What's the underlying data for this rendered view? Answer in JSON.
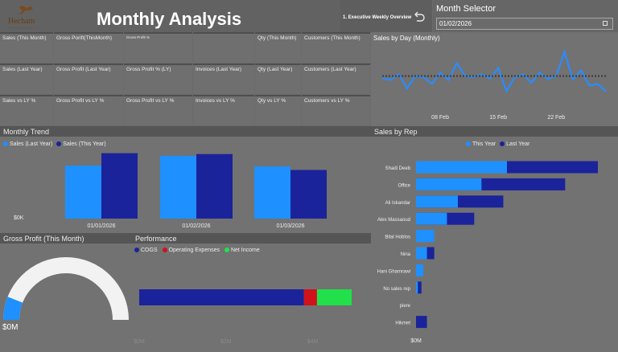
{
  "header": {
    "logo_text": "Hecham",
    "logo_sub": "—————————",
    "title": "Monthly Analysis",
    "nav_label": "1. Executive Weekly Overview",
    "back_icon": "back-arrow-icon"
  },
  "month_selector": {
    "label": "Month Selector",
    "value": "01/02/2026",
    "icon": "calendar-icon"
  },
  "kpi_rows": [
    [
      "Sales (This Month)",
      "Gross Porift(ThisMonth)",
      "Gross Profit %",
      "",
      "Qty (This Month)",
      "Customers (This Month)"
    ],
    [
      "Sales (Last Year)",
      "Gross Profit (Last Year)",
      "Gross Profit % (LY)",
      "Invoices (Last Year)",
      "Qty (Last Year)",
      "Customers (Last Year)"
    ],
    [
      "Sales vs LY %",
      "Gross Profit vs LY %",
      "Gross Profit vs LY %",
      "Invoices vs LY %",
      "Qty vs LY %",
      "Customers vs LY %"
    ]
  ],
  "sales_by_day": {
    "title": "Sales by Day (Monthly)",
    "ticks": [
      "08 Feb",
      "15 Feb",
      "22 Feb"
    ]
  },
  "monthly_trend": {
    "title": "Monthly Trend",
    "legend": [
      "Sales (Last Year)",
      "Sales (This Year)"
    ],
    "y_label": "$0K",
    "colors": {
      "last_year": "#1e90ff",
      "this_year": "#1a239a"
    }
  },
  "sales_by_rep": {
    "title": "Sales by Rep",
    "legend": [
      "This Year",
      "Last Year"
    ],
    "axis_label": "$0M"
  },
  "gross_profit": {
    "title": "Gross Profit (This Month)",
    "value": "$0M",
    "fill_fraction": 0.12
  },
  "performance": {
    "title": "Performance",
    "legend": [
      "COGS",
      "Operating Expenses",
      "Net Income"
    ],
    "colors": [
      "#1a239a",
      "#d0121b",
      "#22e04a"
    ],
    "ticks": [
      "$0M",
      "$2M",
      "$4M"
    ]
  },
  "chart_data": [
    {
      "type": "line",
      "title": "Sales by Day (Monthly)",
      "x": [
        "01 Feb",
        "02 Feb",
        "03 Feb",
        "04 Feb",
        "05 Feb",
        "06 Feb",
        "07 Feb",
        "08 Feb",
        "09 Feb",
        "10 Feb",
        "11 Feb",
        "12 Feb",
        "13 Feb",
        "14 Feb",
        "15 Feb",
        "16 Feb",
        "17 Feb",
        "18 Feb",
        "19 Feb",
        "20 Feb",
        "21 Feb",
        "22 Feb",
        "23 Feb",
        "24 Feb",
        "25 Feb",
        "26 Feb",
        "27 Feb",
        "28 Feb"
      ],
      "series": [
        {
          "values": [
            0.48,
            0.45,
            0.55,
            0.3,
            0.52,
            0.5,
            0.38,
            0.58,
            0.45,
            0.75,
            0.52,
            0.5,
            0.55,
            0.48,
            0.66,
            0.25,
            0.5,
            0.55,
            0.4,
            0.58,
            0.47,
            0.52,
            0.95,
            0.46,
            0.62,
            0.35,
            0.38,
            0.25
          ]
        },
        {
          "values": [
            0.52,
            0.52,
            0.52,
            0.52,
            0.52,
            0.52,
            0.52,
            0.52,
            0.52,
            0.52,
            0.52,
            0.52,
            0.52,
            0.52,
            0.52,
            0.52,
            0.52,
            0.52,
            0.52,
            0.52,
            0.52,
            0.52,
            0.52,
            0.52,
            0.52,
            0.52,
            0.52,
            0.52
          ]
        }
      ],
      "xticks": [
        "08 Feb",
        "15 Feb",
        "22 Feb"
      ]
    },
    {
      "type": "bar",
      "title": "Monthly Trend",
      "categories": [
        "01/01/2026",
        "01/02/2026",
        "01/03/2026"
      ],
      "series": [
        {
          "name": "Sales (Last Year)",
          "values": [
            0.6,
            0.71,
            0.59
          ]
        },
        {
          "name": "Sales (This Year)",
          "values": [
            0.74,
            0.73,
            0.55
          ]
        }
      ],
      "ylabel": "$0K"
    },
    {
      "type": "bar",
      "title": "Sales by Rep",
      "categories": [
        "Shadi Deeb",
        "Office",
        "Ali Iskandar",
        "Alex Massaoud",
        "Bilal Hoblos",
        "Nina",
        "Hani Ghamrawi",
        "No sales rep",
        "piere",
        "Hikmet"
      ],
      "series": [
        {
          "name": "This Year",
          "values": [
            0.5,
            0.36,
            0.23,
            0.17,
            0.1,
            0.06,
            0.04,
            0.01,
            0.0,
            0.0
          ]
        },
        {
          "name": "Last Year",
          "values": [
            1.0,
            0.82,
            0.48,
            0.32,
            0.0,
            0.1,
            0.0,
            0.03,
            0.0,
            0.06
          ]
        }
      ]
    },
    {
      "type": "bar",
      "title": "Performance",
      "categories": [
        "Performance"
      ],
      "series": [
        {
          "name": "COGS",
          "values": [
            3.8
          ]
        },
        {
          "name": "Operating Expenses",
          "values": [
            0.3
          ]
        },
        {
          "name": "Net Income",
          "values": [
            0.8
          ]
        }
      ],
      "xticks": [
        "$0M",
        "$2M",
        "$4M"
      ]
    }
  ]
}
